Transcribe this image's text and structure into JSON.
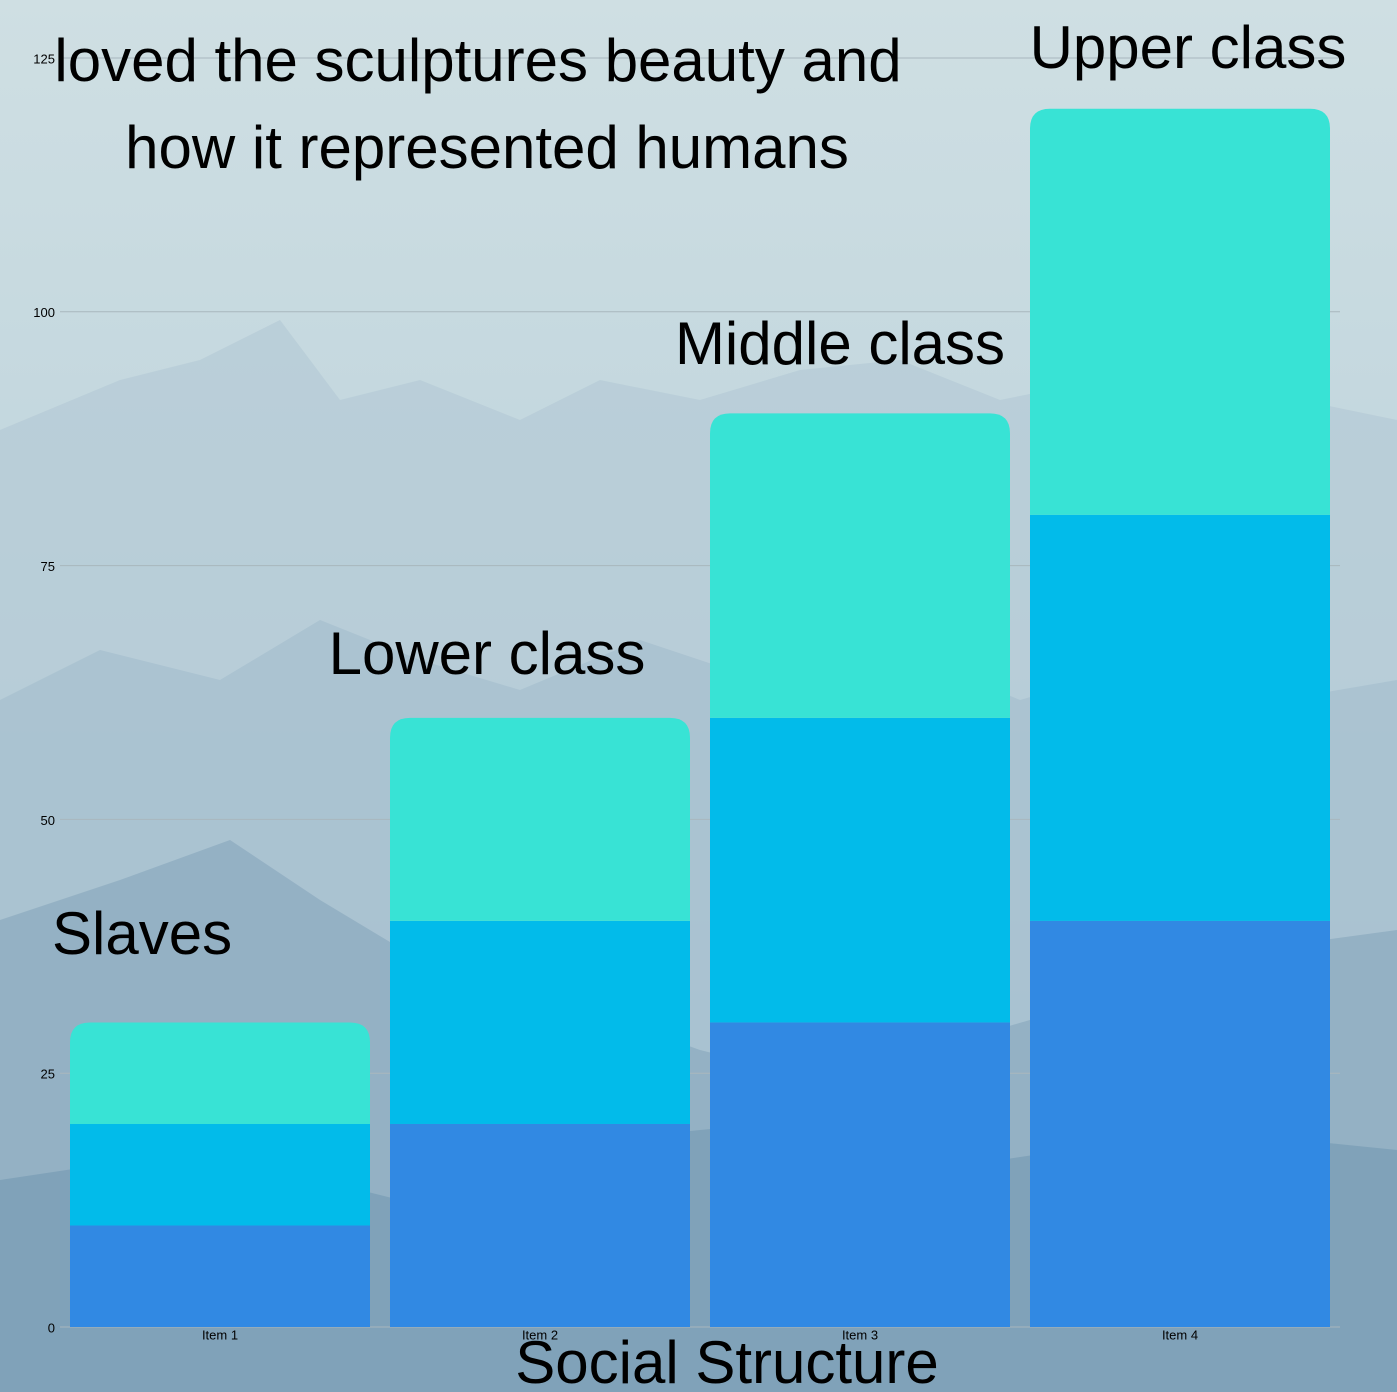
{
  "chart_data": {
    "type": "stacked_bar",
    "categories": [
      "Item 1",
      "Item 2",
      "Item 3",
      "Item 4"
    ],
    "series": [
      {
        "color": "#3189e3",
        "values": [
          10,
          20,
          30,
          40
        ]
      },
      {
        "color": "#02bbea",
        "values": [
          10,
          20,
          30,
          40
        ]
      },
      {
        "color": "#38e3d5",
        "values": [
          10,
          20,
          30,
          40
        ]
      }
    ],
    "ylim": [
      0,
      125
    ],
    "yticks": [
      0,
      25,
      50,
      75,
      100,
      125
    ],
    "grid": true,
    "x_label": "Social Structure",
    "annotations": [
      "loved the sculptures beauty and",
      "how it represented humans",
      "Upper class",
      "Middle class",
      "Lower class",
      "Slaves"
    ]
  }
}
